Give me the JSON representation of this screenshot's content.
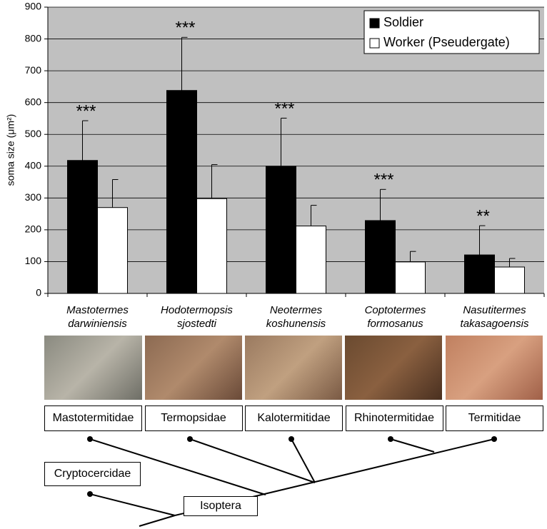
{
  "chart_data": {
    "type": "bar",
    "ylabel": "soma size (μm²)",
    "categories": [
      "Mastotermes darwiniensis",
      "Hodotermopsis sjostedti",
      "Neotermes koshunensis",
      "Coptotermes formosanus",
      "Nasutitermes takasagoensis"
    ],
    "series": [
      {
        "name": "Soldier",
        "color": "#000000",
        "values": [
          418,
          638,
          400,
          229,
          121
        ],
        "errors": [
          125,
          167,
          151,
          98,
          92
        ]
      },
      {
        "name": "Worker (Pseudergate)",
        "color": "#ffffff",
        "values": [
          270,
          298,
          212,
          99,
          83
        ],
        "errors": [
          88,
          107,
          65,
          33,
          27
        ]
      }
    ],
    "annotations": [
      "***",
      "***",
      "***",
      "***",
      "**"
    ],
    "ylim": [
      0,
      900
    ],
    "yticks": [
      0,
      100,
      200,
      300,
      400,
      500,
      600,
      700,
      800,
      900
    ],
    "grid": true,
    "legend": "upper right",
    "background": "#c0c0c0"
  },
  "families": [
    "Mastotermitidae",
    "Termopsidae",
    "Kalotermitidae",
    "Rhinotermitidae",
    "Termitidae"
  ],
  "outgroup": "Cryptocercidae",
  "clade": "Isoptera"
}
